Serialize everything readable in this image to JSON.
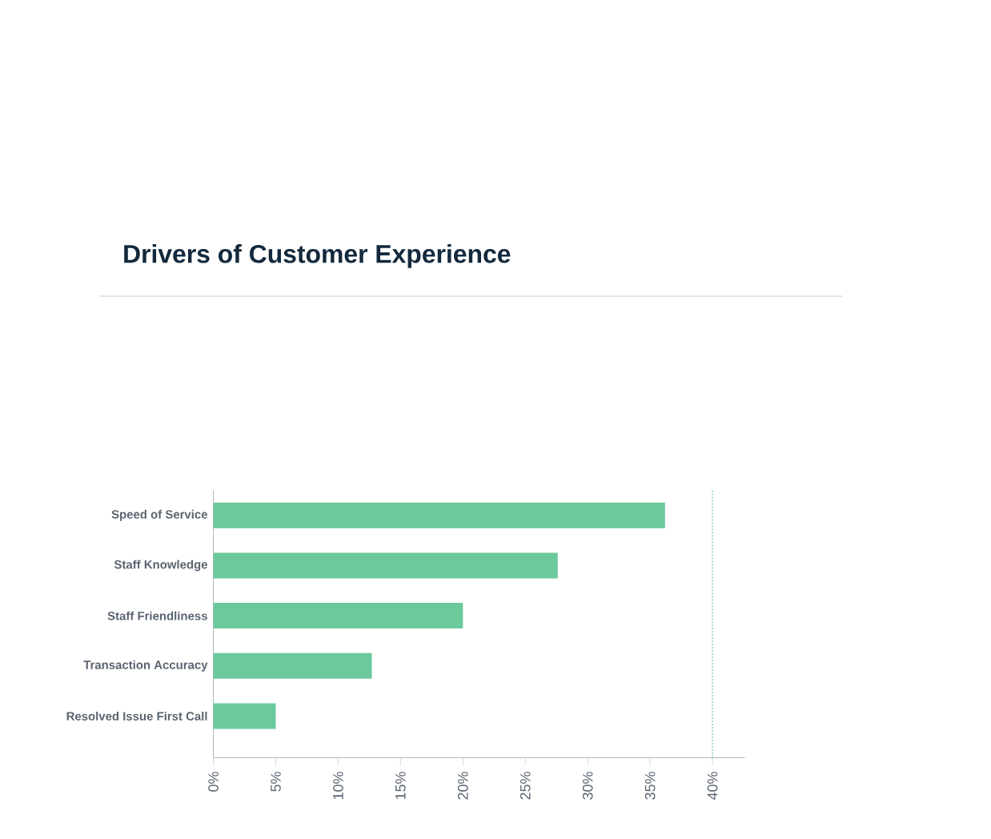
{
  "chart_data": {
    "type": "bar",
    "orientation": "horizontal",
    "title": "Drivers of Customer Experience",
    "categories": [
      "Speed of Service",
      "Staff Knowledge",
      "Staff Friendliness",
      "Transaction Accuracy",
      "Resolved Issue First Call"
    ],
    "values": [
      36.2,
      27.6,
      20.0,
      12.7,
      5.0
    ],
    "color": "#6cc99b",
    "xlim": [
      0,
      42.6
    ],
    "xticks": [
      {
        "value": 0,
        "label": "0%"
      },
      {
        "value": 5,
        "label": "5%"
      },
      {
        "value": 10,
        "label": "10%"
      },
      {
        "value": 15,
        "label": "15%"
      },
      {
        "value": 20,
        "label": "20%"
      },
      {
        "value": 25,
        "label": "25%"
      },
      {
        "value": 30,
        "label": "30%"
      },
      {
        "value": 35,
        "label": "35%"
      },
      {
        "value": 40,
        "label": "40%"
      }
    ],
    "ref_lines": [
      {
        "axis": "x",
        "value": 40,
        "color": "#a8dcc4",
        "line_style": "dotted"
      }
    ]
  }
}
